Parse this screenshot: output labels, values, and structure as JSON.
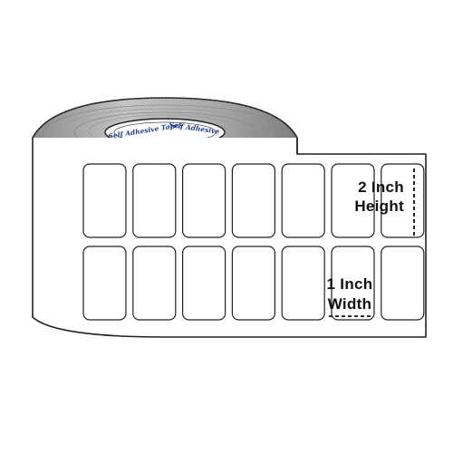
{
  "product": {
    "core_branding_left": "Self Adhesive Tapes",
    "core_branding_right": "Self Adhesive"
  },
  "labels_grid": {
    "rows": 2,
    "columns": 7
  },
  "dimensions": {
    "height": {
      "line1": "2 Inch",
      "line2": "Height"
    },
    "width": {
      "line1": "1 Inch",
      "line2": "Width"
    }
  },
  "colors": {
    "outline": "#222222",
    "roll_edge_light": "#bfbfbf",
    "roll_edge_dark": "#6e6e6e",
    "core_text": "#1f3d8a"
  }
}
